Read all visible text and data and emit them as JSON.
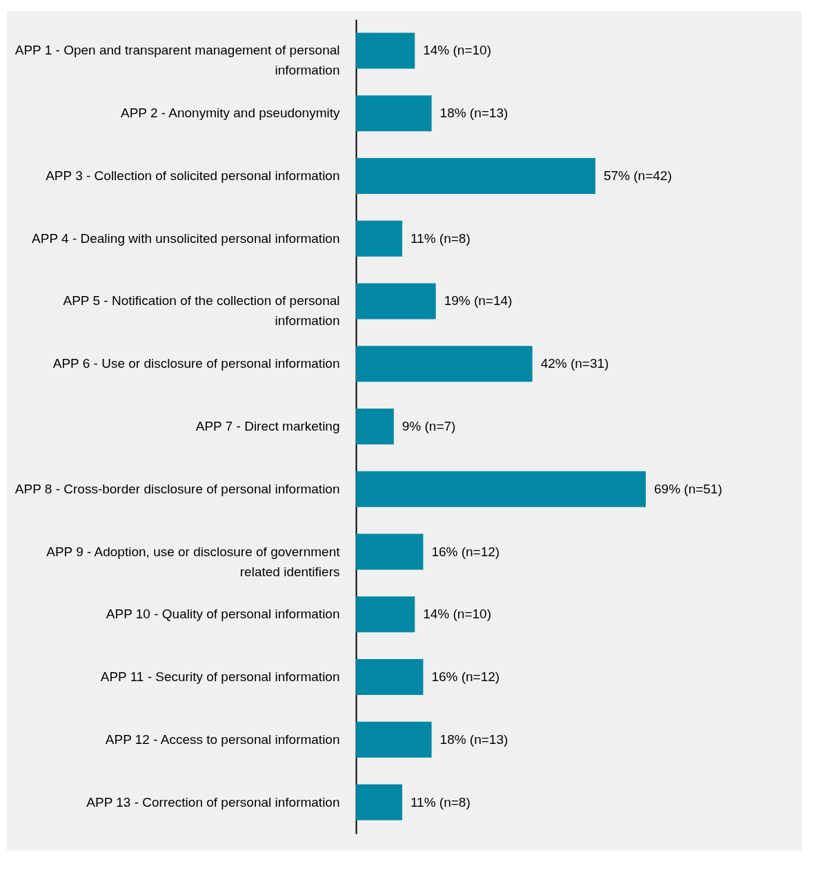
{
  "chart_data": {
    "type": "bar",
    "orientation": "horizontal",
    "categories": [
      "APP 1 - Open and transparent management of personal information",
      "APP 2 - Anonymity and pseudonymity",
      "APP 3 - Collection of solicited personal information",
      "APP 4 - Dealing with unsolicited personal information",
      "APP 5 - Notification of the collection of personal information",
      "APP 6 - Use or disclosure of personal information",
      "APP 7 - Direct marketing",
      "APP 8 - Cross-border disclosure of personal information",
      "APP 9 - Adoption, use or disclosure of government related identifiers",
      "APP 10 - Quality of personal information",
      "APP 11 - Security of personal information",
      "APP 12 - Access to personal information",
      "APP 13 - Correction of personal information"
    ],
    "values": [
      14,
      18,
      57,
      11,
      19,
      42,
      9,
      69,
      16,
      14,
      16,
      18,
      11
    ],
    "value_labels": [
      "14% (n=10)",
      "18% (n=13)",
      "57% (n=42)",
      "11% (n=8)",
      "19% (n=14)",
      "42% (n=31)",
      "9% (n=7)",
      "69% (n=51)",
      "16% (n=12)",
      "14% (n=10)",
      "16% (n=12)",
      "18% (n=13)",
      "11% (n=8)"
    ],
    "color": "#0288a4",
    "grid": false
  }
}
